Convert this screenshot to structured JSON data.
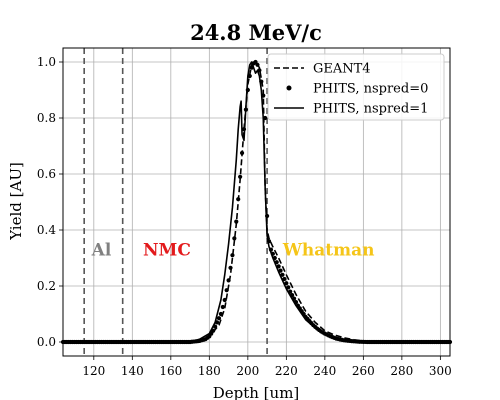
{
  "chart_data": {
    "type": "line",
    "title": "24.8 MeV/c",
    "xlabel": "Depth [um]",
    "ylabel": "Yield [AU]",
    "xlim": [
      104,
      305
    ],
    "ylim": [
      -0.05,
      1.05
    ],
    "xticks": [
      120,
      140,
      160,
      180,
      200,
      220,
      240,
      260,
      280,
      300
    ],
    "yticks": [
      0.0,
      0.2,
      0.4,
      0.6,
      0.8,
      1.0
    ],
    "grid": true,
    "legend_position": "top-right",
    "boundaries": [
      115,
      135,
      210
    ],
    "annotations": [
      {
        "text": "Al",
        "x": 124,
        "y": 0.33,
        "color": "#808080"
      },
      {
        "text": "NMC",
        "x": 158,
        "y": 0.33,
        "color": "#e31a1c"
      },
      {
        "text": "Whatman",
        "x": 242,
        "y": 0.33,
        "color": "#f5c518"
      }
    ],
    "series": [
      {
        "name": "GEANT4",
        "style": "dashed",
        "color": "#000000",
        "x": [
          104,
          170,
          175,
          180,
          185,
          188,
          191,
          194,
          196,
          198,
          200,
          202,
          204,
          206,
          208,
          209,
          210,
          211,
          213,
          216,
          220,
          225,
          230,
          235,
          240,
          245,
          250,
          255,
          260,
          265,
          270,
          305
        ],
        "y": [
          0.0,
          0.0,
          0.005,
          0.02,
          0.06,
          0.12,
          0.24,
          0.42,
          0.58,
          0.76,
          0.92,
          0.99,
          1.0,
          0.98,
          0.9,
          0.55,
          0.4,
          0.37,
          0.34,
          0.3,
          0.24,
          0.17,
          0.11,
          0.07,
          0.04,
          0.025,
          0.015,
          0.008,
          0.004,
          0.002,
          0.0,
          0.0
        ]
      },
      {
        "name": "PHITS, nspred=0",
        "style": "dots",
        "color": "#000000",
        "x": [
          104,
          170,
          175,
          178,
          180,
          182,
          184,
          186,
          188,
          190,
          192,
          194,
          196,
          198,
          200,
          201,
          202,
          203,
          204,
          205,
          206,
          207,
          208,
          209,
          210,
          211,
          212,
          214,
          216,
          218,
          220,
          222,
          224,
          226,
          228,
          230,
          232,
          234,
          236,
          238,
          240,
          243,
          246,
          250,
          254,
          258,
          262,
          305
        ],
        "y": [
          0.0,
          0.0,
          0.004,
          0.01,
          0.02,
          0.04,
          0.07,
          0.1,
          0.15,
          0.22,
          0.31,
          0.43,
          0.59,
          0.76,
          0.9,
          0.95,
          0.98,
          0.995,
          1.0,
          0.99,
          0.97,
          0.93,
          0.88,
          0.8,
          0.45,
          0.36,
          0.33,
          0.3,
          0.27,
          0.24,
          0.21,
          0.18,
          0.155,
          0.13,
          0.11,
          0.09,
          0.075,
          0.06,
          0.048,
          0.038,
          0.03,
          0.02,
          0.012,
          0.006,
          0.003,
          0.001,
          0.0,
          0.0
        ]
      },
      {
        "name": "PHITS, nspred=1",
        "style": "solid",
        "color": "#000000",
        "x": [
          104,
          170,
          175,
          180,
          183,
          186,
          188,
          190,
          192,
          194,
          195,
          196,
          196.5,
          197,
          198,
          199,
          200,
          201,
          202,
          203,
          204,
          205,
          206,
          207,
          208,
          209,
          210,
          211,
          213,
          216,
          220,
          225,
          230,
          235,
          240,
          245,
          250,
          255,
          260,
          305
        ],
        "y": [
          0.0,
          0.0,
          0.01,
          0.03,
          0.07,
          0.15,
          0.24,
          0.35,
          0.48,
          0.65,
          0.76,
          0.84,
          0.86,
          0.74,
          0.72,
          0.84,
          0.95,
          0.99,
          1.0,
          0.98,
          0.96,
          0.97,
          0.95,
          0.9,
          0.8,
          0.55,
          0.38,
          0.34,
          0.3,
          0.25,
          0.19,
          0.13,
          0.08,
          0.05,
          0.03,
          0.016,
          0.008,
          0.004,
          0.0,
          0.0
        ]
      }
    ]
  }
}
